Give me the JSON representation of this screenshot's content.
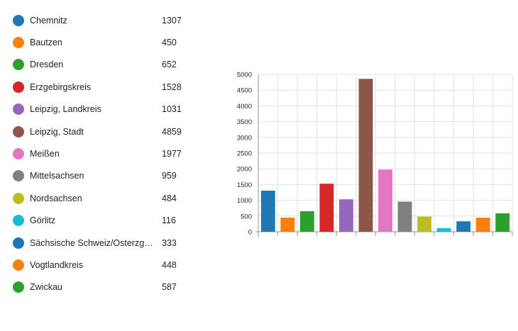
{
  "chart_data": {
    "type": "bar",
    "categories": [
      "Chemnitz",
      "Bautzen",
      "Dresden",
      "Erzgebirgskreis",
      "Leipzig, Landkreis",
      "Leipzig, Stadt",
      "Meißen",
      "Mittelsachsen",
      "Nordsachsen",
      "Görlitz",
      "Sächsische Schweiz/Osterzgeb...",
      "Vogtlandkreis",
      "Zwickau"
    ],
    "values": [
      1307,
      450,
      652,
      1528,
      1031,
      4859,
      1977,
      959,
      484,
      116,
      333,
      448,
      587
    ],
    "colors": [
      "#1f77b4",
      "#ff7f0e",
      "#2ca02c",
      "#d62728",
      "#9467bd",
      "#8c564b",
      "#e377c2",
      "#7f7f7f",
      "#bcbd22",
      "#17becf",
      "#1f77b4",
      "#ff7f0e",
      "#2ca02c"
    ],
    "yticks": [
      0,
      500,
      1000,
      1500,
      2000,
      2500,
      3000,
      3500,
      4000,
      4500,
      5000
    ],
    "ylim": [
      0,
      5000
    ],
    "grid": true,
    "legend_placement": "left"
  }
}
